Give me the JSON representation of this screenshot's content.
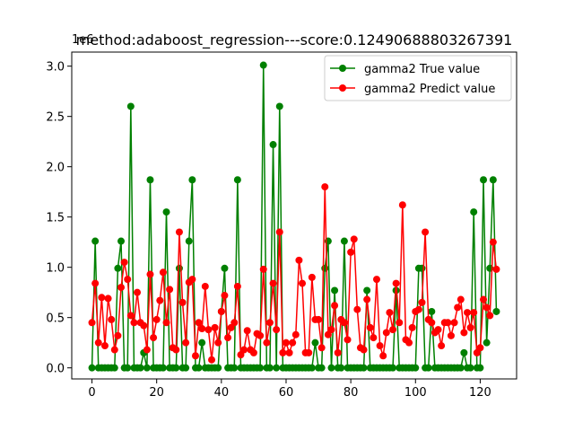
{
  "chart_data": {
    "type": "line",
    "title": "method:adaboost_regression---score:0.12490688803267391",
    "y_offset_label": "1e6",
    "x": [
      0,
      1,
      2,
      3,
      4,
      5,
      6,
      7,
      8,
      9,
      10,
      11,
      12,
      13,
      14,
      15,
      16,
      17,
      18,
      19,
      20,
      21,
      22,
      23,
      24,
      25,
      26,
      27,
      28,
      29,
      30,
      31,
      32,
      33,
      34,
      35,
      36,
      37,
      38,
      39,
      40,
      41,
      42,
      43,
      44,
      45,
      46,
      47,
      48,
      49,
      50,
      51,
      52,
      53,
      54,
      55,
      56,
      57,
      58,
      59,
      60,
      61,
      62,
      63,
      64,
      65,
      66,
      67,
      68,
      69,
      70,
      71,
      72,
      73,
      74,
      75,
      76,
      77,
      78,
      79,
      80,
      81,
      82,
      83,
      84,
      85,
      86,
      87,
      88,
      89,
      90,
      91,
      92,
      93,
      94,
      95,
      96,
      97,
      98,
      99,
      100,
      101,
      102,
      103,
      104,
      105,
      106,
      107,
      108,
      109,
      110,
      111,
      112,
      113,
      114,
      115,
      116,
      117,
      118,
      119,
      120,
      121,
      122,
      123,
      124,
      125
    ],
    "series": [
      {
        "name": "gamma2 True value",
        "color": "#008000",
        "values": [
          0,
          1.26,
          0,
          0,
          0,
          0,
          0,
          0,
          0.99,
          1.26,
          0,
          0,
          2.6,
          0,
          0,
          0,
          0.15,
          0,
          1.87,
          0,
          0,
          0,
          0,
          1.55,
          0,
          0,
          0,
          0.99,
          0,
          0,
          1.26,
          1.87,
          0,
          0,
          0.25,
          0,
          0,
          0,
          0,
          0,
          0.56,
          0.99,
          0,
          0,
          0,
          1.87,
          0,
          0,
          0,
          0,
          0,
          0,
          0,
          3.01,
          0,
          0,
          2.22,
          0,
          2.6,
          0,
          0,
          0,
          0,
          0,
          0,
          0,
          0,
          0,
          0,
          0.25,
          0,
          0,
          0.99,
          1.26,
          0,
          0.77,
          0,
          0,
          1.26,
          0,
          0,
          0,
          0,
          0,
          0,
          0.77,
          0,
          0,
          0,
          0,
          0,
          0,
          0,
          0,
          0.77,
          0,
          0,
          0,
          0,
          0,
          0,
          0.99,
          0.99,
          0,
          0,
          0.56,
          0,
          0,
          0,
          0,
          0,
          0,
          0,
          0,
          0,
          0.15,
          0,
          0,
          1.55,
          0,
          0,
          1.87,
          0.25,
          0.99,
          1.87,
          0.56
        ]
      },
      {
        "name": "gamma2 Predict value",
        "color": "#ff0000",
        "values": [
          0.45,
          0.84,
          0.25,
          0.7,
          0.22,
          0.69,
          0.48,
          0.18,
          0.32,
          0.8,
          1.05,
          0.88,
          0.52,
          0.45,
          0.75,
          0.45,
          0.42,
          0.18,
          0.93,
          0.3,
          0.48,
          0.67,
          0.95,
          0.45,
          0.78,
          0.2,
          0.18,
          1.35,
          0.65,
          0.25,
          0.85,
          0.88,
          0.12,
          0.45,
          0.39,
          0.81,
          0.38,
          0.08,
          0.4,
          0.25,
          0.56,
          0.72,
          0.3,
          0.4,
          0.45,
          0.81,
          0.13,
          0.18,
          0.37,
          0.18,
          0.15,
          0.34,
          0.32,
          0.98,
          0.25,
          0.45,
          0.84,
          0.38,
          1.35,
          0.15,
          0.25,
          0.15,
          0.25,
          0.33,
          1.07,
          0.84,
          0.15,
          0.15,
          0.9,
          0.48,
          0.48,
          0.2,
          1.8,
          0.33,
          0.38,
          0.62,
          0.15,
          0.48,
          0.45,
          0.28,
          1.15,
          1.28,
          0.58,
          0.2,
          0.18,
          0.68,
          0.4,
          0.3,
          0.88,
          0.22,
          0.12,
          0.35,
          0.55,
          0.38,
          0.84,
          0.45,
          1.62,
          0.28,
          0.25,
          0.4,
          0.56,
          0.58,
          0.65,
          1.35,
          0.48,
          0.45,
          0.35,
          0.38,
          0.22,
          0.45,
          0.45,
          0.32,
          0.45,
          0.6,
          0.68,
          0.35,
          0.55,
          0.4,
          0.55,
          0.15,
          0.2,
          0.68,
          0.6,
          0.52,
          1.25,
          0.98
        ]
      }
    ],
    "xlim": [
      -6.25,
      131.25
    ],
    "xticks": [
      0,
      20,
      40,
      60,
      80,
      100,
      120
    ],
    "ylim": [
      -0.11,
      3.14
    ],
    "yticks": [
      {
        "value": 0,
        "label": "0.0"
      },
      {
        "value": 0.5,
        "label": "0.5"
      },
      {
        "value": 1,
        "label": "1.0"
      },
      {
        "value": 1.5,
        "label": "1.5"
      },
      {
        "value": 2,
        "label": "2.0"
      },
      {
        "value": 2.5,
        "label": "2.5"
      },
      {
        "value": 3,
        "label": "3.0"
      }
    ],
    "legend": "upper right",
    "grid": false
  }
}
